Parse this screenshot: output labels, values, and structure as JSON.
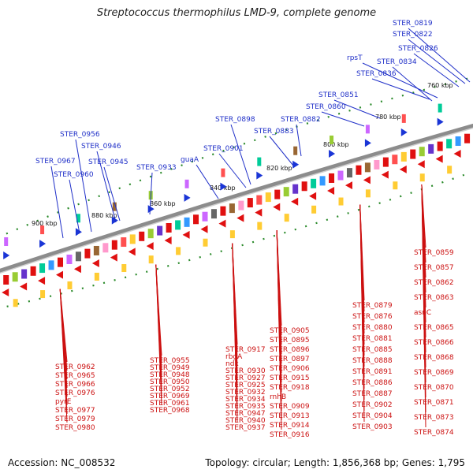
{
  "title": "Streptococcus thermophilus LMD-9, complete genome",
  "footer": {
    "accession": "Accession: NC_008532",
    "topology": "Topology: circular; Length: 1,856,368 bp; Genes: 1,795"
  },
  "colors": {
    "forward_gene": "#1a35d6",
    "reverse_gene": "#e01010",
    "backbone": "#8c8c8c",
    "tick": "#2a8a2a",
    "label_blue": "#1f2fc8",
    "label_red": "#cc1111"
  },
  "kbp_ticks": [
    {
      "label": "900 kbp",
      "kbp": 900
    },
    {
      "label": "880 kbp",
      "kbp": 880
    },
    {
      "label": "860 kbp",
      "kbp": 860
    },
    {
      "label": "840 kbp",
      "kbp": 840
    },
    {
      "label": "820 kbp",
      "kbp": 820
    },
    {
      "label": "800 kbp",
      "kbp": 800
    },
    {
      "label": "780 kbp",
      "kbp": 780
    },
    {
      "label": "760 kbp",
      "kbp": 760
    }
  ],
  "forward_labels": [
    "STER_0819",
    "STER_0822",
    "STER_0826",
    "rpsT",
    "STER_0834",
    "STER_0836",
    "STER_0851",
    "STER_0860",
    "STER_0882",
    "STER_0883",
    "STER_0898",
    "STER_0901",
    "guaA",
    "STER_0933",
    "STER_0945",
    "STER_0946",
    "STER_0956",
    "STER_0960",
    "STER_0967"
  ],
  "reverse_labels": [
    "STER_0859",
    "STER_0857",
    "STER_0862",
    "STER_0863",
    "asnC",
    "STER_0865",
    "STER_0866",
    "STER_0868",
    "STER_0869",
    "STER_0870",
    "STER_0871",
    "STER_0873",
    "STER_0874",
    "STER_0879",
    "STER_0876",
    "STER_0880",
    "STER_0881",
    "STER_0885",
    "STER_0888",
    "STER_0891",
    "STER_0886",
    "STER_0887",
    "STER_0902",
    "STER_0904",
    "STER_0903",
    "STER_0905",
    "STER_0895",
    "STER_0896",
    "STER_0897",
    "STER_0906",
    "STER_0915",
    "STER_0918",
    "rnhB",
    "STER_0909",
    "STER_0913",
    "STER_0914",
    "STER_0916",
    "STER_0917",
    "rbgA",
    "ndk",
    "STER_0930",
    "STER_0927",
    "STER_0925",
    "STER_0932",
    "STER_0934",
    "STER_0935",
    "STER_0947",
    "STER_0940",
    "STER_0937",
    "STER_0955",
    "STER_0949",
    "STER_0948",
    "STER_0950",
    "STER_0952",
    "STER_0969",
    "STER_0961",
    "STER_0968",
    "STER_0962",
    "STER_0965",
    "STER_0966",
    "STER_0976",
    "pyrE",
    "STER_0977",
    "STER_0979",
    "STER_0980"
  ]
}
